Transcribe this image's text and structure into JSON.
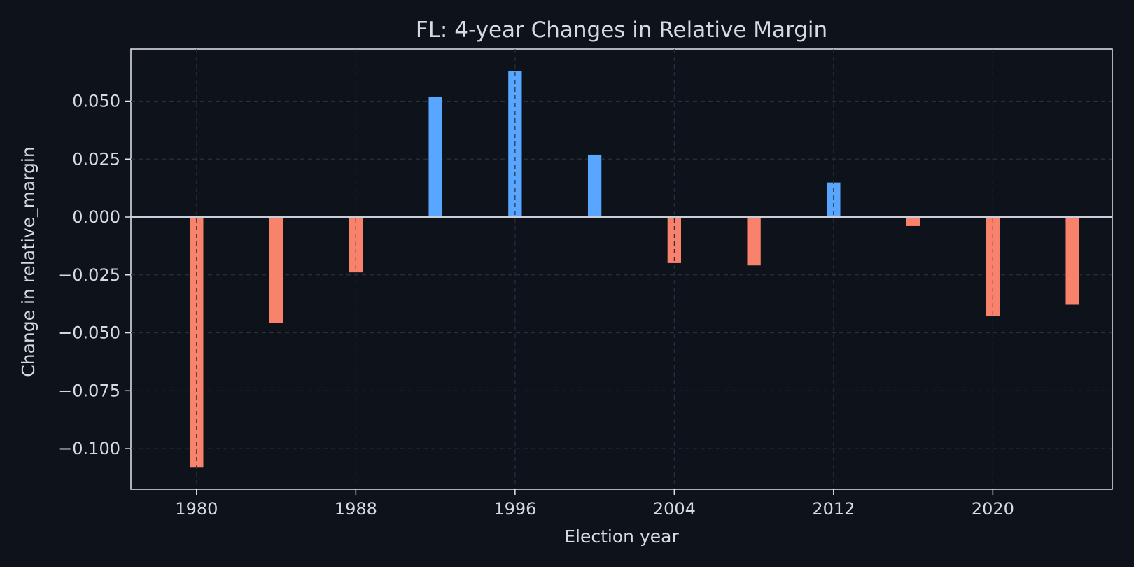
{
  "chart_data": {
    "type": "bar",
    "title": "FL: 4-year Changes in Relative Margin",
    "xlabel": "Election year",
    "ylabel": "Change in relative_margin",
    "x": [
      1980,
      1984,
      1988,
      1992,
      1996,
      2000,
      2004,
      2008,
      2012,
      2016,
      2020,
      2024
    ],
    "values": [
      -0.108,
      -0.046,
      -0.024,
      0.052,
      0.063,
      0.027,
      -0.02,
      -0.021,
      0.015,
      -0.004,
      -0.043,
      -0.038
    ],
    "xlim": [
      1976.7,
      2026.0
    ],
    "ylim": [
      -0.1175,
      0.0725
    ],
    "xticks": [
      1980,
      1988,
      1996,
      2004,
      2012,
      2020
    ],
    "xtick_labels": [
      "1980",
      "1988",
      "1996",
      "2004",
      "2012",
      "2020"
    ],
    "yticks": [
      0.05,
      0.025,
      0.0,
      -0.025,
      -0.05,
      -0.075,
      -0.1
    ],
    "ytick_labels": [
      "0.050",
      "0.025",
      "0.000",
      "−0.025",
      "−0.050",
      "−0.075",
      "−0.100"
    ],
    "grid": true,
    "colors": {
      "positive": "#58a6ff",
      "negative": "#f9826c",
      "background": "#0e121a",
      "text": "#d5dae3"
    }
  }
}
